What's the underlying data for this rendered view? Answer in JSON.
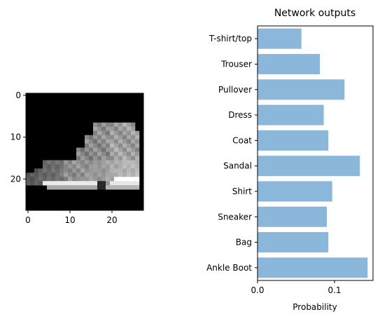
{
  "chart_data": [
    {
      "type": "heatmap",
      "colormap": "gray",
      "grid": false,
      "x_ticks": [
        "0",
        "10",
        "20"
      ],
      "y_ticks": [
        "0",
        "10",
        "20"
      ],
      "xlim": [
        -0.5,
        27.5
      ],
      "ylim": [
        27.5,
        -0.5
      ],
      "size": [
        28,
        28
      ]
    },
    {
      "type": "bar",
      "orientation": "horizontal",
      "title": "Network outputs",
      "xlabel": "Probability",
      "ylabel": "",
      "categories": [
        "T-shirt/top",
        "Trouser",
        "Pullover",
        "Dress",
        "Coat",
        "Sandal",
        "Shirt",
        "Sneaker",
        "Bag",
        "Ankle Boot"
      ],
      "values": [
        0.057,
        0.081,
        0.113,
        0.086,
        0.092,
        0.133,
        0.097,
        0.09,
        0.092,
        0.143
      ],
      "xlim": [
        0.0,
        0.15
      ],
      "x_ticks": [
        "0.0",
        "0.1"
      ],
      "bar_color": "#8bb8da",
      "grid": false,
      "legend": "none"
    }
  ]
}
